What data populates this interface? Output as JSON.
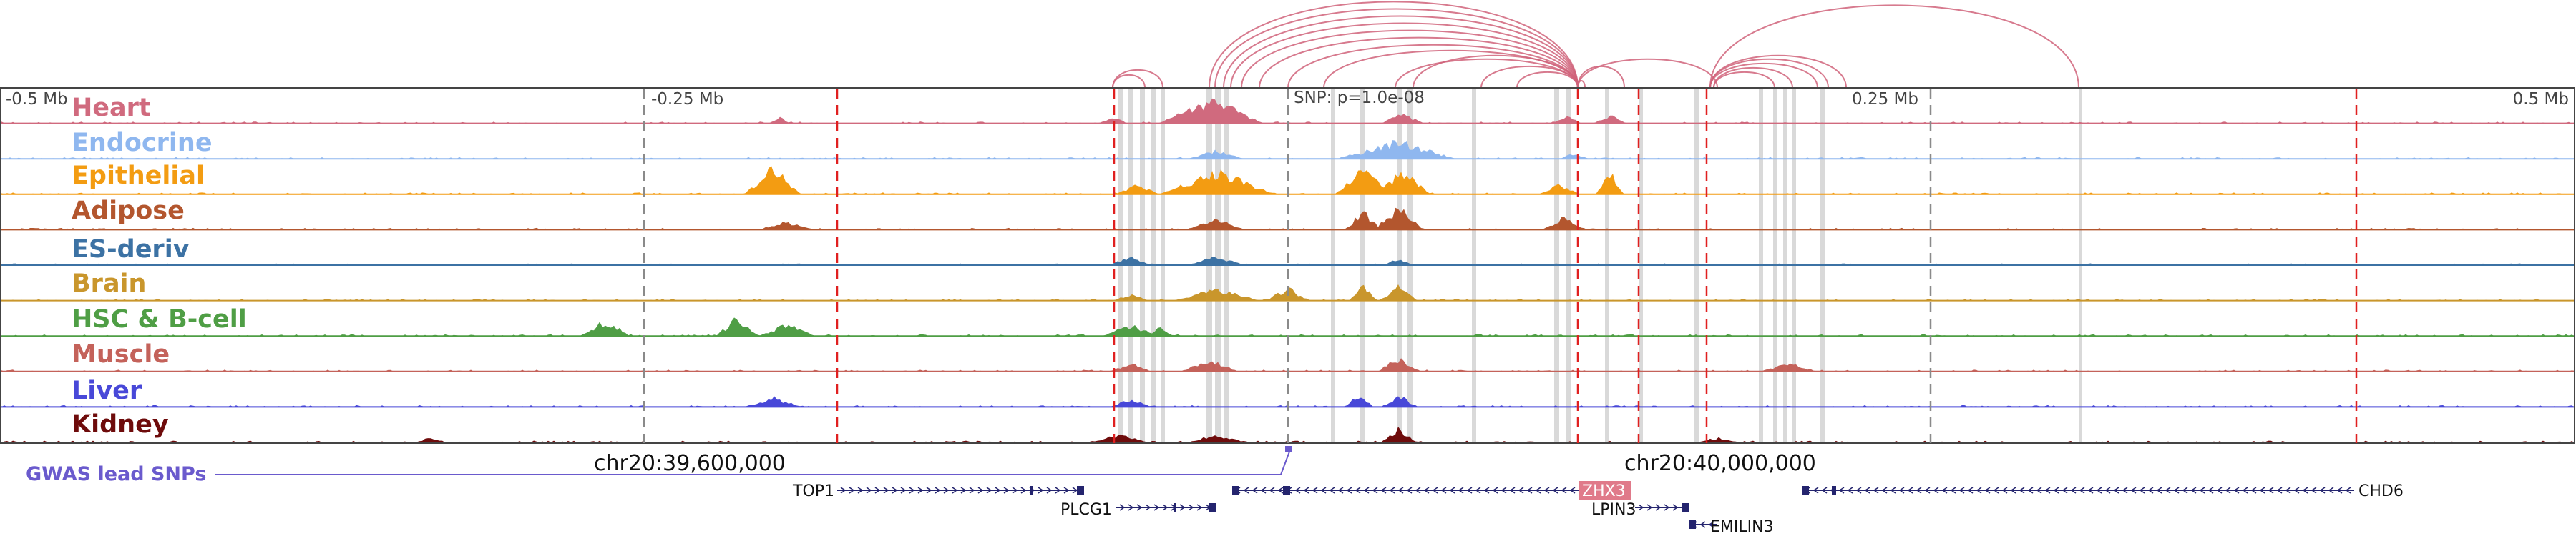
{
  "axis": {
    "left_label": "-0.5 Mb",
    "q1_label": "-0.25 Mb",
    "snp_label": "SNP: p=1.0e-08",
    "q3_label": "0.25 Mb",
    "right_label": "0.5 Mb"
  },
  "tracks": [
    {
      "name": "Heart",
      "color": "#d06a7e"
    },
    {
      "name": "Endocrine",
      "color": "#8fb7ef"
    },
    {
      "name": "Epithelial",
      "color": "#f39c12"
    },
    {
      "name": "Adipose",
      "color": "#b3562e"
    },
    {
      "name": "ES-deriv",
      "color": "#3c72a4"
    },
    {
      "name": "Brain",
      "color": "#c9962c"
    },
    {
      "name": "HSC & B-cell",
      "color": "#4f9e45"
    },
    {
      "name": "Muscle",
      "color": "#c4625a"
    },
    {
      "name": "Liver",
      "color": "#4848d8"
    },
    {
      "name": "Kidney",
      "color": "#6e0b0b"
    }
  ],
  "coordinates": {
    "left": "chr20:39,600,000",
    "right": "chr20:40,000,000"
  },
  "gwas": {
    "label": "GWAS lead SNPs",
    "color": "#6a5acd"
  },
  "genes": [
    {
      "name": "TOP1",
      "highlight": false
    },
    {
      "name": "PLCG1",
      "highlight": false
    },
    {
      "name": "ZHX3",
      "highlight": true
    },
    {
      "name": "LPIN3",
      "highlight": false
    },
    {
      "name": "EMILIN3",
      "highlight": false
    },
    {
      "name": "CHD6",
      "highlight": false
    }
  ],
  "colors": {
    "loop": "#d0637a",
    "snp_line": "#e02020",
    "gene": "#24246e",
    "highlight_bg": "#d9d9d9",
    "zhx3_box": "#e07a8a"
  }
}
